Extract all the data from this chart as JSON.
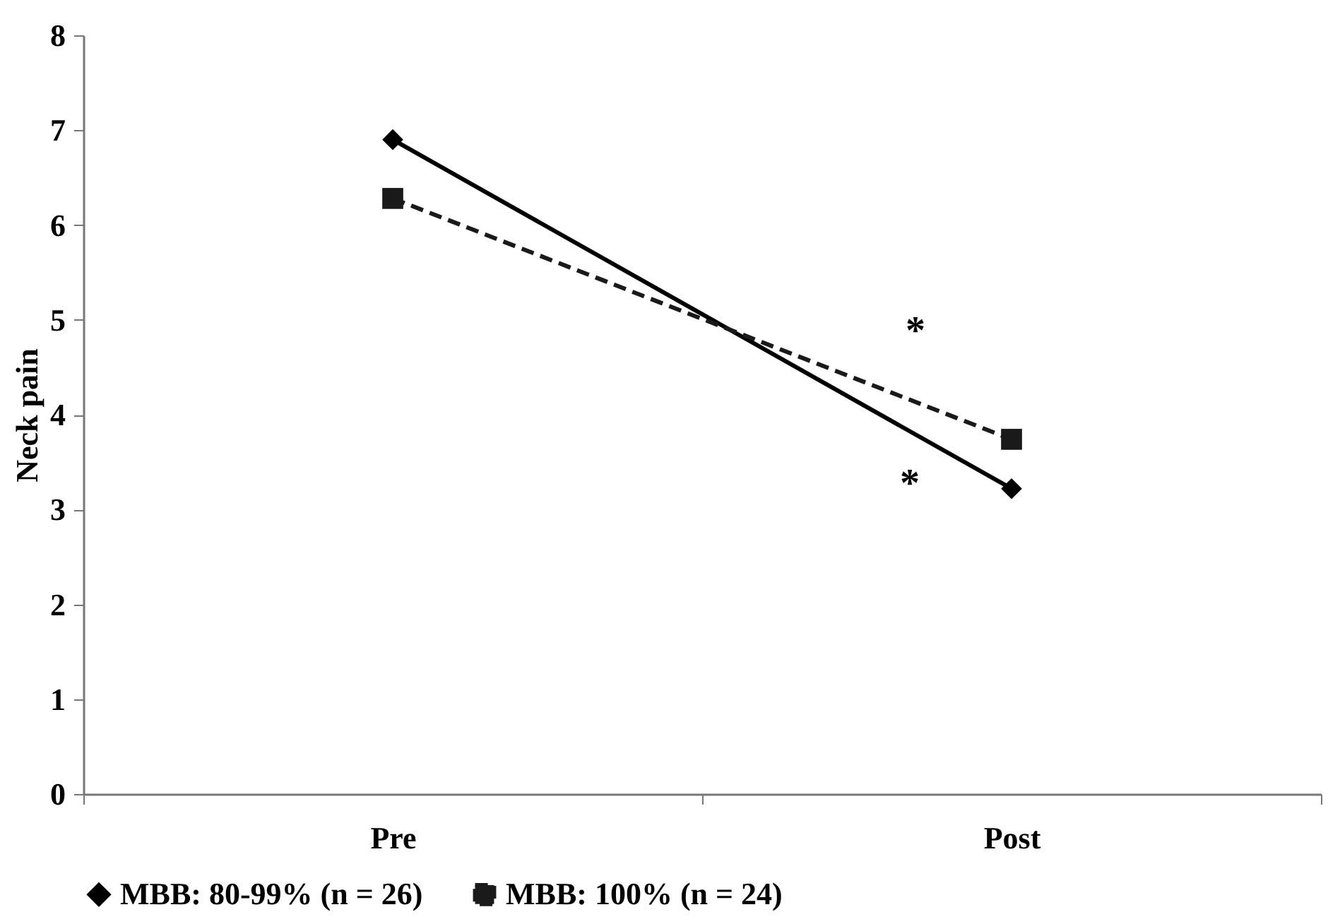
{
  "chart_data": {
    "type": "line",
    "ylabel": "Neck pain",
    "categories": [
      "Pre",
      "Post"
    ],
    "series": [
      {
        "name": "MBB: 80-99% (n = 26)",
        "color": "#000000",
        "values": [
          6.9,
          3.22
        ],
        "marker": "diamond",
        "line_style": "solid"
      },
      {
        "name": "MBB: 100% (n = 24)",
        "color": "#1a1a1a",
        "values": [
          6.28,
          3.74
        ],
        "marker": "square",
        "line_style": "dashed"
      }
    ],
    "annotations": [
      "*",
      "*"
    ],
    "ylim": [
      0,
      8
    ],
    "yticks": [
      0,
      1,
      2,
      3,
      4,
      5,
      6,
      7,
      8
    ],
    "grid": false,
    "legend": "bottom"
  }
}
